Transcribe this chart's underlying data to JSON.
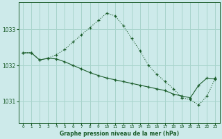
{
  "title": "Graphe pression niveau de la mer (hPa)",
  "bg_color": "#cdeaea",
  "grid_color": "#a8d4cc",
  "line_color": "#1a5c2a",
  "xlabel_color": "#1a5c2a",
  "ylim": [
    1030.4,
    1033.75
  ],
  "yticks": [
    1031,
    1032,
    1033
  ],
  "xticks": [
    0,
    1,
    2,
    3,
    4,
    5,
    6,
    7,
    8,
    9,
    10,
    11,
    12,
    13,
    14,
    15,
    16,
    17,
    18,
    19,
    20,
    21,
    22,
    23
  ],
  "series1_x": [
    0,
    1,
    2,
    3,
    4,
    5,
    6,
    7,
    8,
    9,
    10,
    11,
    12,
    13,
    14,
    15,
    16,
    17,
    18,
    19,
    20,
    21,
    22,
    23
  ],
  "series1_y": [
    1032.35,
    1032.35,
    1032.15,
    1032.2,
    1032.3,
    1032.45,
    1032.65,
    1032.85,
    1033.05,
    1033.25,
    1033.45,
    1033.38,
    1033.1,
    1032.75,
    1032.4,
    1032.0,
    1031.75,
    1031.55,
    1031.35,
    1031.1,
    1031.05,
    1030.9,
    1031.15,
    1031.65
  ],
  "series2_x": [
    0,
    1,
    2,
    3,
    4,
    5,
    6,
    7,
    8,
    9,
    10,
    11,
    12,
    13,
    14,
    15,
    16,
    17,
    18,
    19,
    20,
    21,
    22,
    23
  ],
  "series2_y": [
    1032.35,
    1032.35,
    1032.15,
    1032.2,
    1032.18,
    1032.1,
    1032.0,
    1031.9,
    1031.8,
    1031.72,
    1031.65,
    1031.6,
    1031.55,
    1031.5,
    1031.45,
    1031.4,
    1031.35,
    1031.3,
    1031.2,
    1031.15,
    1031.1,
    1031.45,
    1031.65,
    1031.62
  ]
}
